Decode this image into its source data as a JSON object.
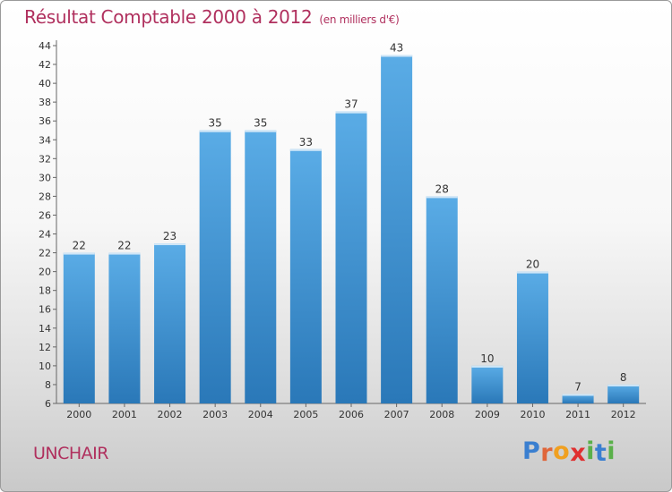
{
  "chart_data": {
    "type": "bar",
    "title": "Résultat Comptable 2000 à 2012",
    "subtitle": "(en milliers d'€)",
    "categories": [
      "2000",
      "2001",
      "2002",
      "2003",
      "2004",
      "2005",
      "2006",
      "2007",
      "2008",
      "2009",
      "2010",
      "2011",
      "2012"
    ],
    "values": [
      22,
      22,
      23,
      35,
      35,
      33,
      37,
      43,
      28,
      10,
      20,
      7,
      8
    ],
    "ylim": [
      6,
      44
    ],
    "yticks": [
      6,
      8,
      10,
      12,
      14,
      16,
      18,
      20,
      22,
      24,
      26,
      28,
      30,
      32,
      34,
      36,
      38,
      40,
      42,
      44
    ],
    "xlabel": "",
    "ylabel": "",
    "grid": false,
    "colors": {
      "bar_light": "#5aace6",
      "bar_dark": "#2a78b8",
      "bar_top": "#cfe6f7"
    }
  },
  "footer": {
    "place": "UNCHAIR",
    "logo_letters": [
      "P",
      "r",
      "o",
      "x",
      "i",
      "t",
      "i"
    ],
    "logo_colors": [
      "#3a7fd0",
      "#e0663a",
      "#f0a020",
      "#e03030",
      "#5ab04a",
      "#3a7fd0",
      "#5ab04a"
    ]
  }
}
